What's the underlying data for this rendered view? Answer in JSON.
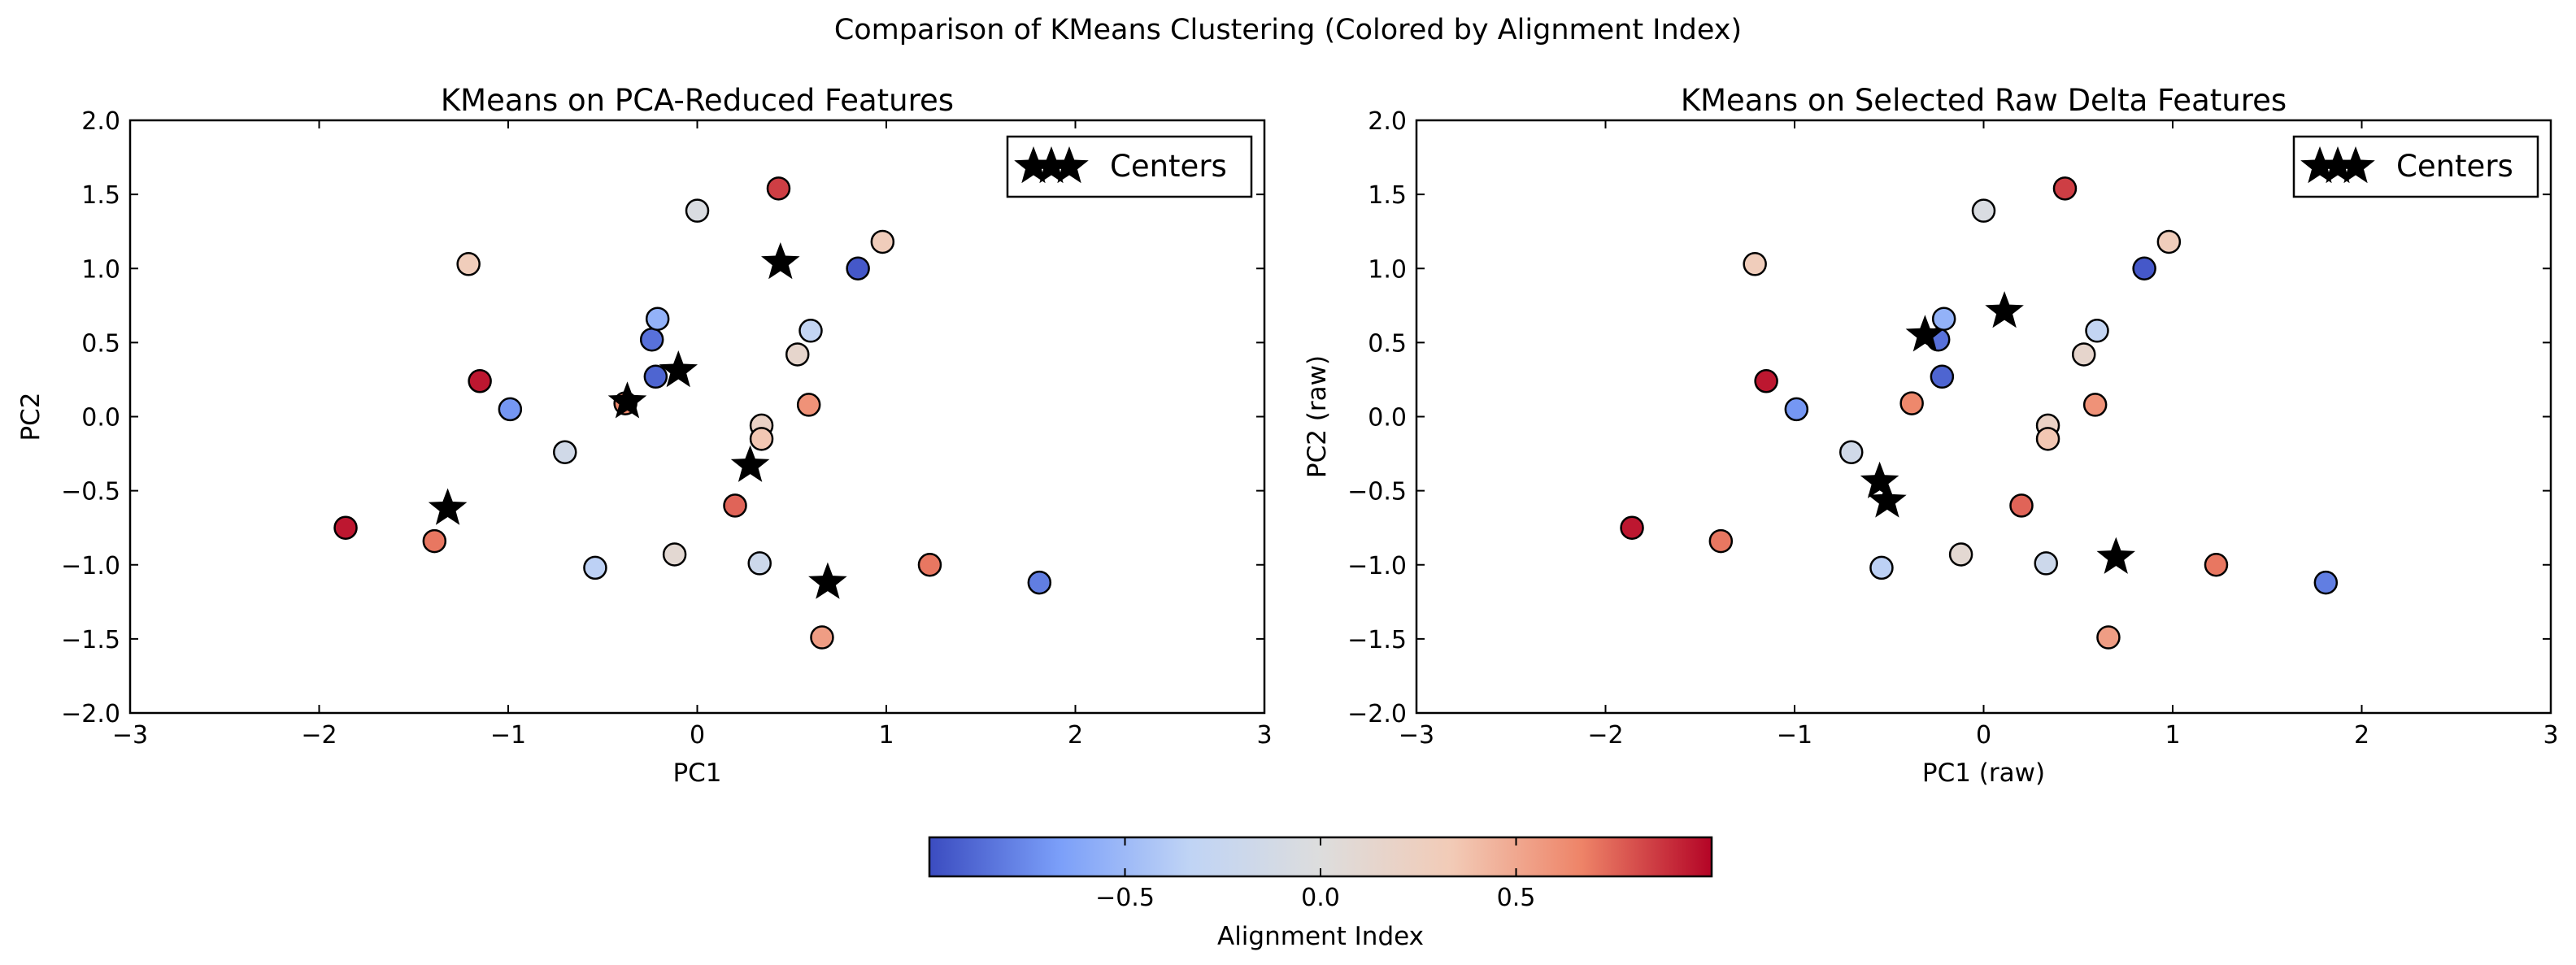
{
  "figure": {
    "suptitle": "Comparison of KMeans Clustering (Colored by Alignment Index)"
  },
  "colorbar": {
    "label": "Alignment Index",
    "range": [
      -1,
      1
    ],
    "ticks": [
      -0.5,
      0.0,
      0.5
    ],
    "tick_labels": [
      "−0.5",
      "0.0",
      "0.5"
    ],
    "colormap": [
      "#3b4cc0",
      "#7b9ff9",
      "#c0d4f5",
      "#dddddd",
      "#f2cbb7",
      "#ee8468",
      "#b40426"
    ]
  },
  "chart_data": [
    {
      "type": "scatter",
      "title": "KMeans on PCA-Reduced Features",
      "xlabel": "PC1",
      "ylabel": "PC2",
      "xlim": [
        -3,
        3
      ],
      "ylim": [
        -2,
        2
      ],
      "xticks": [
        -3,
        -2,
        -1,
        0,
        1,
        2,
        3
      ],
      "xtick_labels": [
        "−3",
        "−2",
        "−1",
        "0",
        "1",
        "2",
        "3"
      ],
      "yticks": [
        -2.0,
        -1.5,
        -1.0,
        -0.5,
        0.0,
        0.5,
        1.0,
        1.5,
        2.0
      ],
      "ytick_labels": [
        "−2.0",
        "−1.5",
        "−1.0",
        "−0.5",
        "0.0",
        "0.5",
        "1.0",
        "1.5",
        "2.0"
      ],
      "legend": {
        "label": "Centers",
        "placement": "top-right"
      },
      "points": [
        {
          "x": -1.86,
          "y": -0.75,
          "c": 0.95
        },
        {
          "x": -1.39,
          "y": -0.84,
          "c": 0.7
        },
        {
          "x": -1.21,
          "y": 1.03,
          "c": 0.3
        },
        {
          "x": -1.15,
          "y": 0.24,
          "c": 0.95
        },
        {
          "x": -0.99,
          "y": 0.05,
          "c": -0.7
        },
        {
          "x": -0.7,
          "y": -0.24,
          "c": -0.15
        },
        {
          "x": -0.54,
          "y": -1.02,
          "c": -0.35
        },
        {
          "x": -0.38,
          "y": 0.09,
          "c": 0.65
        },
        {
          "x": -0.24,
          "y": 0.52,
          "c": -0.85
        },
        {
          "x": -0.21,
          "y": 0.66,
          "c": -0.55
        },
        {
          "x": -0.22,
          "y": 0.27,
          "c": -0.9
        },
        {
          "x": -0.12,
          "y": -0.93,
          "c": 0.1
        },
        {
          "x": 0.0,
          "y": 1.39,
          "c": -0.05
        },
        {
          "x": 0.2,
          "y": -0.6,
          "c": 0.75
        },
        {
          "x": 0.33,
          "y": -0.99,
          "c": -0.2
        },
        {
          "x": 0.34,
          "y": -0.06,
          "c": 0.2
        },
        {
          "x": 0.34,
          "y": -0.15,
          "c": 0.35
        },
        {
          "x": 0.43,
          "y": 1.54,
          "c": 0.85
        },
        {
          "x": 0.53,
          "y": 0.42,
          "c": 0.15
        },
        {
          "x": 0.59,
          "y": 0.08,
          "c": 0.6
        },
        {
          "x": 0.6,
          "y": 0.58,
          "c": -0.3
        },
        {
          "x": 0.66,
          "y": -1.49,
          "c": 0.55
        },
        {
          "x": 0.85,
          "y": 1.0,
          "c": -0.95
        },
        {
          "x": 0.98,
          "y": 1.18,
          "c": 0.3
        },
        {
          "x": 1.23,
          "y": -1.0,
          "c": 0.7
        },
        {
          "x": 1.81,
          "y": -1.12,
          "c": -0.8
        }
      ],
      "centers": [
        {
          "x": -1.32,
          "y": -0.62
        },
        {
          "x": -0.37,
          "y": 0.1
        },
        {
          "x": -0.1,
          "y": 0.31
        },
        {
          "x": 0.44,
          "y": 1.04
        },
        {
          "x": 0.28,
          "y": -0.33
        },
        {
          "x": 0.69,
          "y": -1.12
        }
      ]
    },
    {
      "type": "scatter",
      "title": "KMeans on Selected Raw Delta Features",
      "xlabel": "PC1 (raw)",
      "ylabel": "PC2 (raw)",
      "xlim": [
        -3,
        3
      ],
      "ylim": [
        -2,
        2
      ],
      "xticks": [
        -3,
        -2,
        -1,
        0,
        1,
        2,
        3
      ],
      "xtick_labels": [
        "−3",
        "−2",
        "−1",
        "0",
        "1",
        "2",
        "3"
      ],
      "yticks": [
        -2.0,
        -1.5,
        -1.0,
        -0.5,
        0.0,
        0.5,
        1.0,
        1.5,
        2.0
      ],
      "ytick_labels": [
        "−2.0",
        "−1.5",
        "−1.0",
        "−0.5",
        "0.0",
        "0.5",
        "1.0",
        "1.5",
        "2.0"
      ],
      "legend": {
        "label": "Centers",
        "placement": "top-right"
      },
      "points": [
        {
          "x": -1.86,
          "y": -0.75,
          "c": 0.95
        },
        {
          "x": -1.39,
          "y": -0.84,
          "c": 0.7
        },
        {
          "x": -1.21,
          "y": 1.03,
          "c": 0.3
        },
        {
          "x": -1.15,
          "y": 0.24,
          "c": 0.95
        },
        {
          "x": -0.99,
          "y": 0.05,
          "c": -0.7
        },
        {
          "x": -0.7,
          "y": -0.24,
          "c": -0.15
        },
        {
          "x": -0.54,
          "y": -1.02,
          "c": -0.35
        },
        {
          "x": -0.38,
          "y": 0.09,
          "c": 0.65
        },
        {
          "x": -0.24,
          "y": 0.52,
          "c": -0.85
        },
        {
          "x": -0.21,
          "y": 0.66,
          "c": -0.55
        },
        {
          "x": -0.22,
          "y": 0.27,
          "c": -0.9
        },
        {
          "x": -0.12,
          "y": -0.93,
          "c": 0.1
        },
        {
          "x": 0.0,
          "y": 1.39,
          "c": -0.05
        },
        {
          "x": 0.2,
          "y": -0.6,
          "c": 0.75
        },
        {
          "x": 0.33,
          "y": -0.99,
          "c": -0.2
        },
        {
          "x": 0.34,
          "y": -0.06,
          "c": 0.2
        },
        {
          "x": 0.34,
          "y": -0.15,
          "c": 0.35
        },
        {
          "x": 0.43,
          "y": 1.54,
          "c": 0.85
        },
        {
          "x": 0.53,
          "y": 0.42,
          "c": 0.15
        },
        {
          "x": 0.59,
          "y": 0.08,
          "c": 0.6
        },
        {
          "x": 0.6,
          "y": 0.58,
          "c": -0.3
        },
        {
          "x": 0.66,
          "y": -1.49,
          "c": 0.55
        },
        {
          "x": 0.85,
          "y": 1.0,
          "c": -0.95
        },
        {
          "x": 0.98,
          "y": 1.18,
          "c": 0.3
        },
        {
          "x": 1.23,
          "y": -1.0,
          "c": 0.7
        },
        {
          "x": 1.81,
          "y": -1.12,
          "c": -0.8
        }
      ],
      "centers": [
        {
          "x": -0.31,
          "y": 0.55
        },
        {
          "x": 0.11,
          "y": 0.71
        },
        {
          "x": -0.55,
          "y": -0.44
        },
        {
          "x": -0.51,
          "y": -0.57
        },
        {
          "x": 0.7,
          "y": -0.95
        }
      ]
    }
  ]
}
